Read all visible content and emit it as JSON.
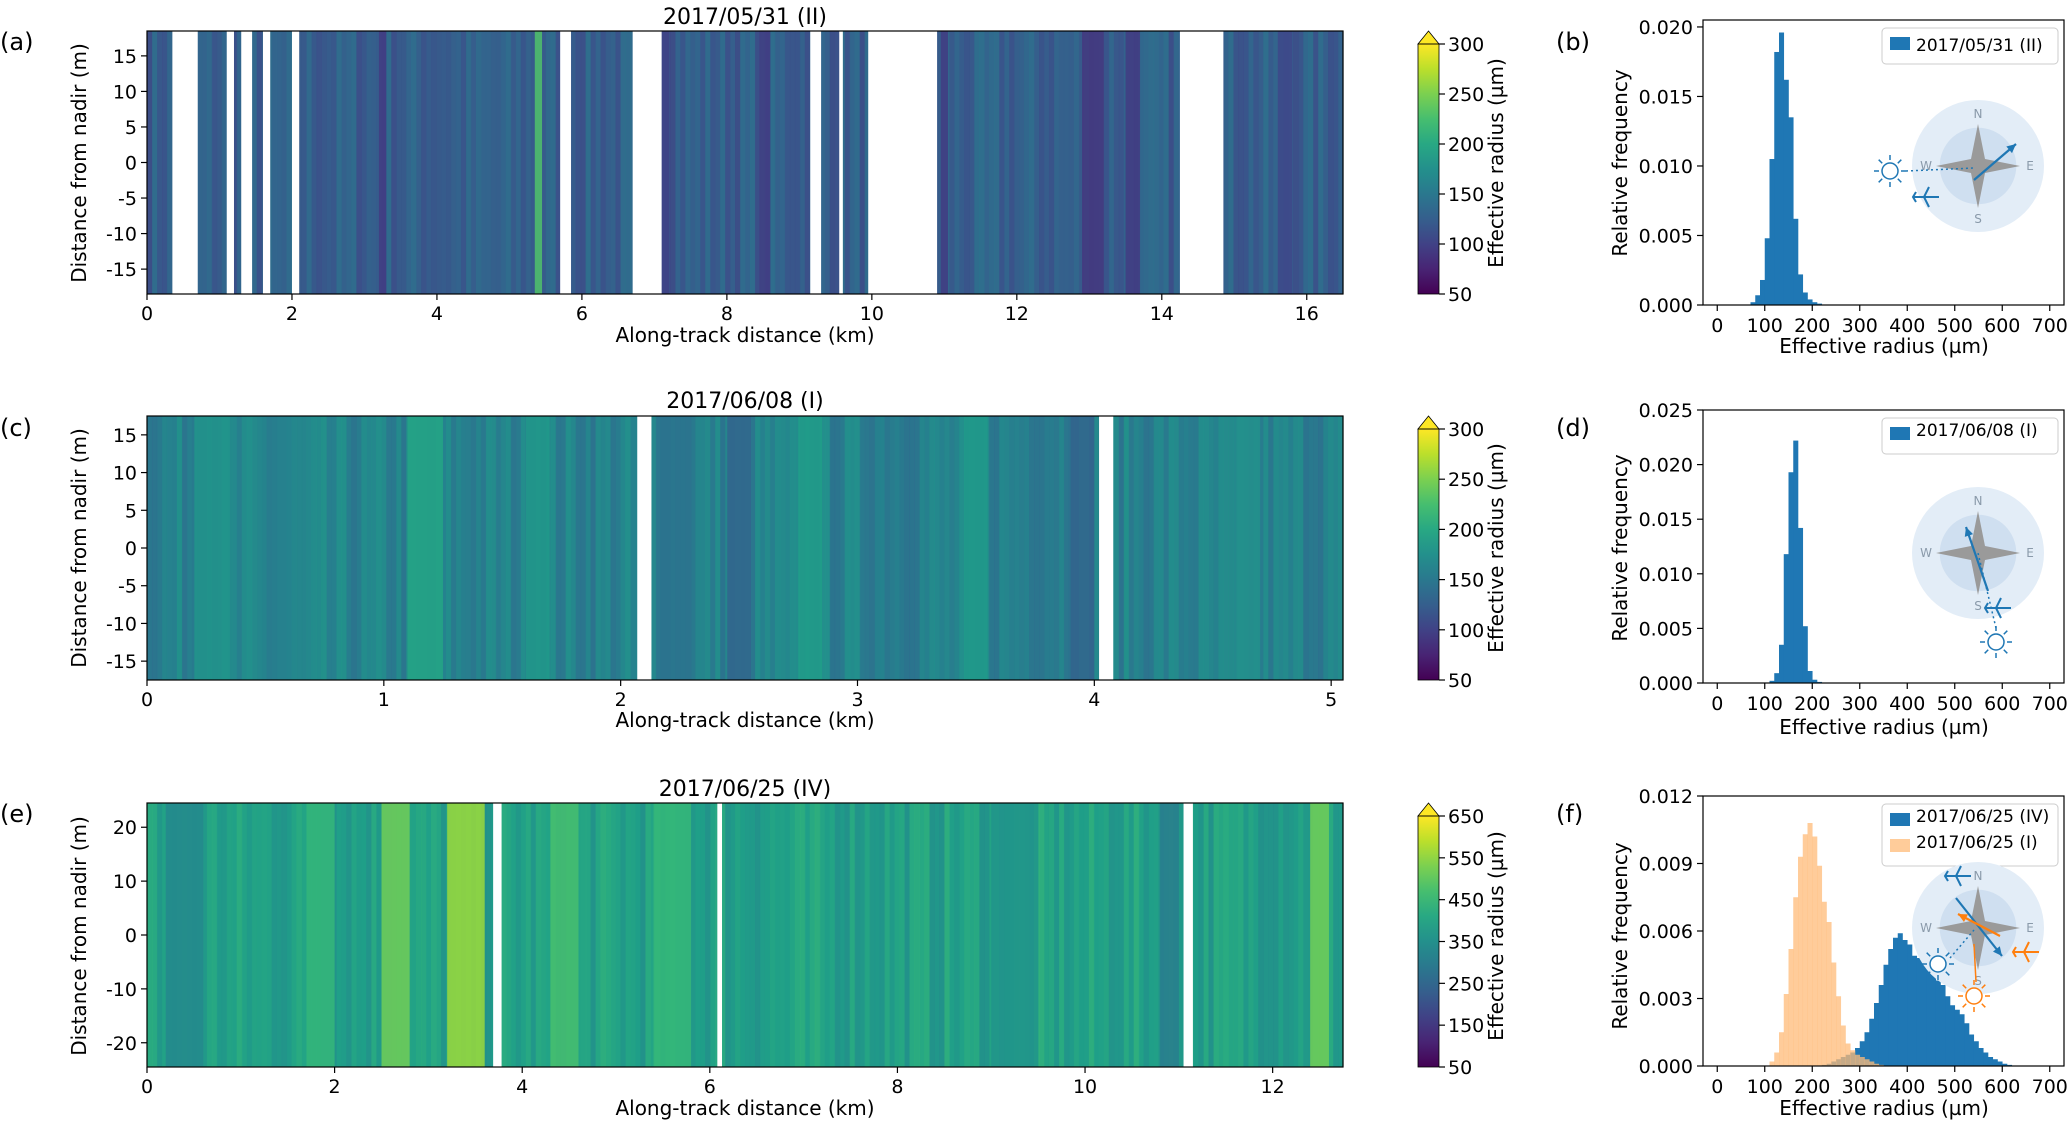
{
  "panel_letters": {
    "a": "(a)",
    "b": "(b)",
    "c": "(c)",
    "d": "(d)",
    "e": "(e)",
    "f": "(f)"
  },
  "chart_data": [
    {
      "id": "a",
      "type": "heatmap",
      "title": "2017/05/31 (II)",
      "xlabel": "Along-track distance (km)",
      "ylabel": "Distance from nadir (m)",
      "xlim": [
        0,
        16.5
      ],
      "ylim": [
        -18.5,
        18.5
      ],
      "xticks": [
        0,
        2,
        4,
        6,
        8,
        10,
        12,
        14,
        16
      ],
      "yticks": [
        -15,
        -10,
        -5,
        0,
        5,
        10,
        15
      ],
      "colorbar": {
        "label": "Effective radius (µm)",
        "range": [
          50,
          300
        ],
        "ticks": [
          50,
          100,
          150,
          200,
          250,
          300
        ],
        "colormap": "viridis",
        "extend": "max"
      },
      "base_value": 125,
      "gaps_km": [
        [
          0.35,
          0.7
        ],
        [
          1.1,
          1.2
        ],
        [
          1.3,
          1.45
        ],
        [
          1.6,
          1.7
        ],
        [
          2.0,
          2.1
        ],
        [
          5.7,
          5.85
        ],
        [
          6.7,
          7.1
        ],
        [
          9.15,
          9.3
        ],
        [
          9.55,
          9.6
        ],
        [
          9.95,
          10.9
        ],
        [
          14.25,
          14.85
        ]
      ],
      "streaks_km": [
        [
          5.35,
          5.45,
          230
        ],
        [
          3.2,
          3.3,
          95
        ],
        [
          8.45,
          8.6,
          95
        ],
        [
          10.95,
          11.05,
          95
        ],
        [
          12.9,
          13.2,
          90
        ],
        [
          13.5,
          13.7,
          95
        ],
        [
          15.6,
          15.8,
          105
        ],
        [
          7.1,
          7.2,
          100
        ]
      ]
    },
    {
      "id": "b",
      "type": "bar",
      "xlabel": "Effective radius (µm)",
      "ylabel": "Relative frequency",
      "xlim": [
        -30,
        730
      ],
      "ylim": [
        0,
        0.0205
      ],
      "xticks": [
        0,
        100,
        200,
        300,
        400,
        500,
        600,
        700
      ],
      "yticks": [
        "0.000",
        "0.005",
        "0.010",
        "0.015",
        "0.020"
      ],
      "ytick_values": [
        0,
        0.005,
        0.01,
        0.015,
        0.02
      ],
      "bin_width": 10,
      "series": [
        {
          "name": "2017/05/31 (II)",
          "color": "#1f77b4",
          "bins": [
            [
              70,
              0.0002
            ],
            [
              80,
              0.0007
            ],
            [
              90,
              0.0018
            ],
            [
              100,
              0.0048
            ],
            [
              110,
              0.0105
            ],
            [
              120,
              0.0182
            ],
            [
              130,
              0.0196
            ],
            [
              140,
              0.0162
            ],
            [
              150,
              0.0135
            ],
            [
              160,
              0.0062
            ],
            [
              170,
              0.0022
            ],
            [
              180,
              0.0009
            ],
            [
              190,
              0.0004
            ],
            [
              200,
              0.0002
            ],
            [
              210,
              0.0001
            ]
          ]
        }
      ],
      "legend_position": "upper right",
      "compass": {
        "n": "N",
        "s": "S",
        "e": "E",
        "w": "W"
      }
    },
    {
      "id": "c",
      "type": "heatmap",
      "title": "2017/06/08 (I)",
      "xlabel": "Along-track distance (km)",
      "ylabel": "Distance from nadir (m)",
      "xlim": [
        0,
        5.05
      ],
      "ylim": [
        -17.5,
        17.5
      ],
      "xticks": [
        0,
        1,
        2,
        3,
        4,
        5
      ],
      "yticks": [
        -15,
        -10,
        -5,
        0,
        5,
        10,
        15
      ],
      "colorbar": {
        "label": "Effective radius (µm)",
        "range": [
          50,
          300
        ],
        "ticks": [
          50,
          100,
          150,
          200,
          250,
          300
        ],
        "colormap": "viridis",
        "extend": "max"
      },
      "base_value": 160,
      "gaps_km": [
        [
          2.07,
          2.13
        ],
        [
          4.02,
          4.08
        ]
      ],
      "streaks_km": [
        [
          1.1,
          1.25,
          195
        ],
        [
          0.2,
          0.35,
          180
        ],
        [
          2.75,
          2.85,
          190
        ],
        [
          3.45,
          3.55,
          185
        ],
        [
          4.6,
          4.7,
          175
        ],
        [
          1.6,
          1.7,
          185
        ],
        [
          2.45,
          2.55,
          130
        ],
        [
          3.9,
          4.0,
          130
        ],
        [
          2.15,
          2.3,
          145
        ]
      ]
    },
    {
      "id": "d",
      "type": "bar",
      "xlabel": "Effective radius (µm)",
      "ylabel": "Relative frequency",
      "xlim": [
        -30,
        730
      ],
      "ylim": [
        0,
        0.025
      ],
      "xticks": [
        0,
        100,
        200,
        300,
        400,
        500,
        600,
        700
      ],
      "yticks": [
        "0.000",
        "0.005",
        "0.010",
        "0.015",
        "0.020",
        "0.025"
      ],
      "ytick_values": [
        0,
        0.005,
        0.01,
        0.015,
        0.02,
        0.025
      ],
      "bin_width": 10,
      "series": [
        {
          "name": "2017/06/08 (I)",
          "color": "#1f77b4",
          "bins": [
            [
              110,
              0.0002
            ],
            [
              120,
              0.0009
            ],
            [
              130,
              0.0035
            ],
            [
              140,
              0.0118
            ],
            [
              150,
              0.0193
            ],
            [
              160,
              0.0222
            ],
            [
              170,
              0.0142
            ],
            [
              180,
              0.0052
            ],
            [
              190,
              0.0011
            ],
            [
              200,
              0.0003
            ],
            [
              210,
              0.0001
            ]
          ]
        }
      ],
      "legend_position": "upper right",
      "compass": {
        "n": "N",
        "s": "S",
        "e": "E",
        "w": "W"
      }
    },
    {
      "id": "e",
      "type": "heatmap",
      "title": "2017/06/25 (IV)",
      "xlabel": "Along-track distance (km)",
      "ylabel": "Distance from nadir (m)",
      "xlim": [
        0,
        12.75
      ],
      "ylim": [
        -24.5,
        24.5
      ],
      "xticks": [
        0,
        2,
        4,
        6,
        8,
        10,
        12
      ],
      "yticks": [
        -20,
        -10,
        0,
        10,
        20
      ],
      "colorbar": {
        "label": "Effective radius (µm)",
        "range": [
          50,
          650
        ],
        "ticks": [
          50,
          150,
          250,
          350,
          450,
          550,
          650
        ],
        "colormap": "viridis",
        "extend": "max"
      },
      "base_value": 390,
      "gaps_km": [
        [
          3.69,
          3.78
        ],
        [
          6.08,
          6.13
        ],
        [
          11.05,
          11.15
        ]
      ],
      "streaks_km": [
        [
          2.5,
          2.8,
          520
        ],
        [
          3.2,
          3.6,
          560
        ],
        [
          4.3,
          4.6,
          470
        ],
        [
          5.4,
          5.8,
          450
        ],
        [
          12.4,
          12.6,
          520
        ],
        [
          1.7,
          2.0,
          450
        ],
        [
          10.8,
          11.0,
          300
        ],
        [
          0.2,
          0.6,
          330
        ],
        [
          9.0,
          9.5,
          360
        ]
      ]
    },
    {
      "id": "f",
      "type": "bar",
      "xlabel": "Effective radius (µm)",
      "ylabel": "Relative frequency",
      "xlim": [
        -30,
        730
      ],
      "ylim": [
        0,
        0.012
      ],
      "xticks": [
        0,
        100,
        200,
        300,
        400,
        500,
        600,
        700
      ],
      "yticks": [
        "0.000",
        "0.003",
        "0.006",
        "0.009",
        "0.012"
      ],
      "ytick_values": [
        0,
        0.003,
        0.006,
        0.009,
        0.012
      ],
      "bin_width": 10,
      "series": [
        {
          "name": "2017/06/25 (IV)",
          "color": "#1f77b4",
          "bins": [
            [
              220,
              5e-05
            ],
            [
              230,
              0.0001
            ],
            [
              240,
              0.0002
            ],
            [
              250,
              0.0003
            ],
            [
              260,
              0.0004
            ],
            [
              270,
              0.0005
            ],
            [
              280,
              0.0006
            ],
            [
              290,
              0.0008
            ],
            [
              300,
              0.0011
            ],
            [
              310,
              0.0015
            ],
            [
              320,
              0.0021
            ],
            [
              330,
              0.0028
            ],
            [
              340,
              0.0036
            ],
            [
              350,
              0.0045
            ],
            [
              360,
              0.0052
            ],
            [
              370,
              0.0057
            ],
            [
              380,
              0.0059
            ],
            [
              390,
              0.0056
            ],
            [
              400,
              0.0054
            ],
            [
              410,
              0.0049
            ],
            [
              420,
              0.0048
            ],
            [
              430,
              0.0047
            ],
            [
              440,
              0.0045
            ],
            [
              450,
              0.0041
            ],
            [
              460,
              0.0038
            ],
            [
              470,
              0.0036
            ],
            [
              480,
              0.0031
            ],
            [
              490,
              0.0027
            ],
            [
              500,
              0.0025
            ],
            [
              510,
              0.0023
            ],
            [
              520,
              0.0019
            ],
            [
              530,
              0.0014
            ],
            [
              540,
              0.0011
            ],
            [
              550,
              0.0008
            ],
            [
              560,
              0.0006
            ],
            [
              570,
              0.0004
            ],
            [
              580,
              0.0003
            ],
            [
              590,
              0.0002
            ],
            [
              600,
              0.0001
            ],
            [
              610,
              5e-05
            ]
          ]
        },
        {
          "name": "2017/06/25 (I)",
          "color": "#ffbb78",
          "bins": [
            [
              110,
              0.0002
            ],
            [
              120,
              0.0006
            ],
            [
              130,
              0.0015
            ],
            [
              140,
              0.0032
            ],
            [
              150,
              0.0052
            ],
            [
              160,
              0.0075
            ],
            [
              170,
              0.0093
            ],
            [
              180,
              0.0103
            ],
            [
              190,
              0.0108
            ],
            [
              200,
              0.0102
            ],
            [
              210,
              0.0089
            ],
            [
              220,
              0.0073
            ],
            [
              230,
              0.0064
            ],
            [
              240,
              0.0046
            ],
            [
              250,
              0.0031
            ],
            [
              260,
              0.0018
            ],
            [
              270,
              0.001
            ],
            [
              280,
              0.0007
            ],
            [
              290,
              0.0005
            ],
            [
              300,
              0.0004
            ],
            [
              310,
              0.0003
            ],
            [
              320,
              0.0002
            ],
            [
              330,
              0.0001
            ],
            [
              340,
              5e-05
            ]
          ]
        }
      ],
      "legend_position": "upper right",
      "compass": {
        "n": "N",
        "s": "S",
        "e": "E",
        "w": "W"
      }
    }
  ]
}
